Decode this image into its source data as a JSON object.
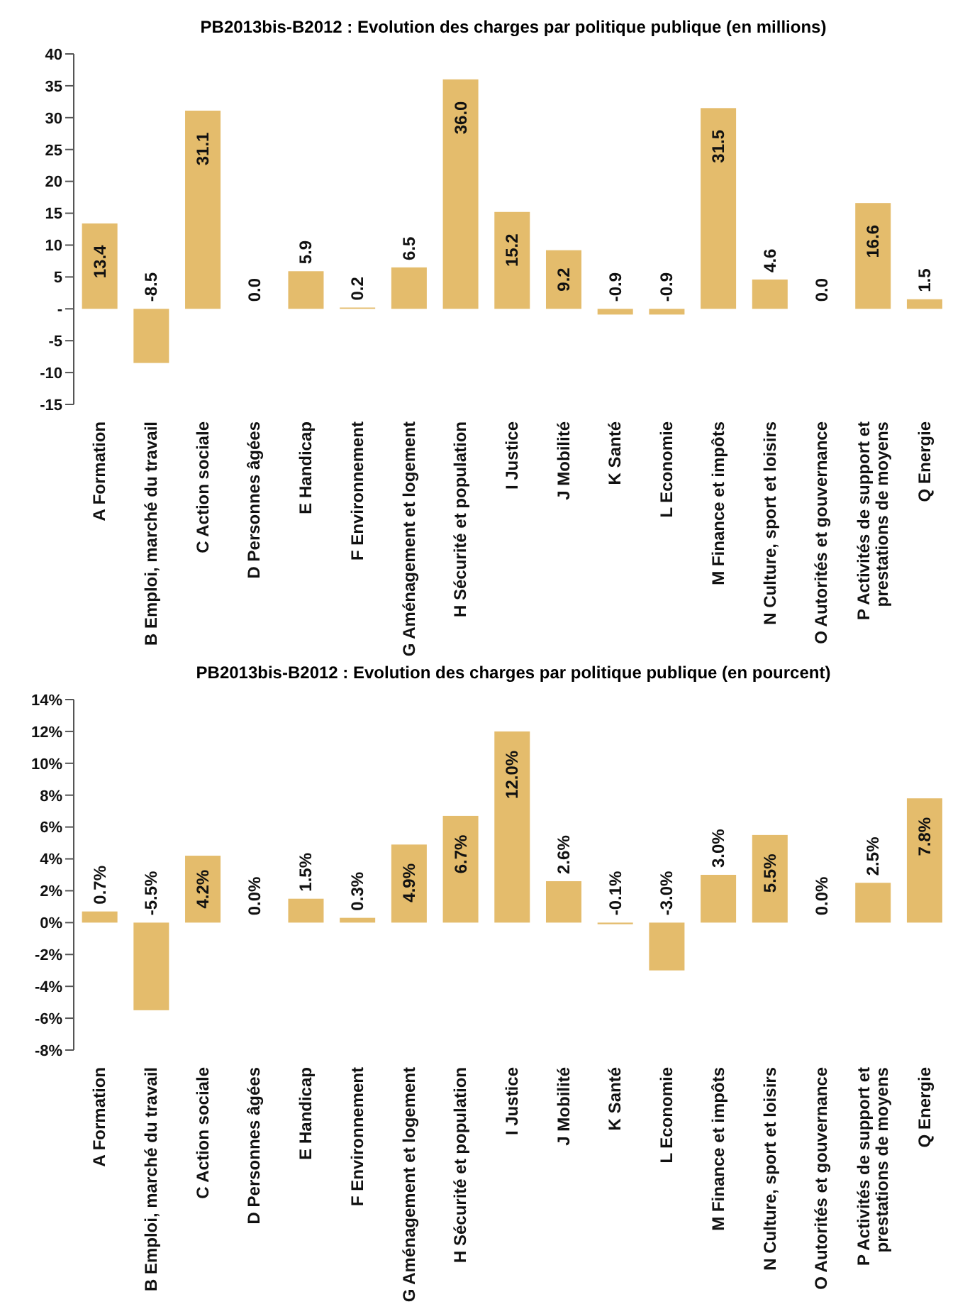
{
  "chart_data": [
    {
      "type": "bar",
      "title": "PB2013bis-B2012 : Evolution des charges par politique publique (en millions)",
      "categories": [
        "A Formation",
        "B Emploi, marché du travail",
        "C Action sociale",
        "D Personnes âgées",
        "E Handicap",
        "F Environnement",
        "G Aménagement et logement",
        "H Sécurité et population",
        "I Justice",
        "J Mobilité",
        "K Santé",
        "L Economie",
        "M Finance et impôts",
        "N Culture, sport et loisirs",
        "O Autorités et gouvernance",
        "P Activités de support et prestations de moyens",
        "Q Energie"
      ],
      "values": [
        13.4,
        -8.5,
        31.1,
        0.0,
        5.9,
        0.2,
        6.5,
        36.0,
        15.2,
        9.2,
        -0.9,
        -0.9,
        31.5,
        4.6,
        0.0,
        16.6,
        1.5
      ],
      "value_labels": [
        "13.4",
        "-8.5",
        "31.1",
        "0.0",
        "5.9",
        "0.2",
        "6.5",
        "36.0",
        "15.2",
        "9.2",
        "-0.9",
        "-0.9",
        "31.5",
        "4.6",
        "0.0",
        "16.6",
        "1.5"
      ],
      "color": "#e4bc6c",
      "ylim": [
        -15,
        40
      ],
      "yticks": [
        -15,
        -10,
        -5,
        {
          "value": 0,
          "label": "-"
        },
        5,
        10,
        15,
        20,
        25,
        30,
        35,
        40
      ],
      "grid": false,
      "legend": false
    },
    {
      "type": "bar",
      "title": "PB2013bis-B2012 : Evolution des charges par politique publique (en pourcent)",
      "categories": [
        "A Formation",
        "B Emploi, marché du travail",
        "C Action sociale",
        "D Personnes âgées",
        "E Handicap",
        "F Environnement",
        "G Aménagement et logement",
        "H Sécurité et population",
        "I Justice",
        "J Mobilité",
        "K Santé",
        "L Economie",
        "M Finance et impôts",
        "N Culture, sport et loisirs",
        "O Autorités et gouvernance",
        "P Activités de support et prestations de moyens",
        "Q Energie"
      ],
      "values": [
        0.7,
        -5.5,
        4.2,
        0.0,
        1.5,
        0.3,
        4.9,
        6.7,
        12.0,
        2.6,
        -0.1,
        -3.0,
        3.0,
        5.5,
        0.0,
        2.5,
        7.8
      ],
      "value_labels": [
        "0.7%",
        "-5.5%",
        "4.2%",
        "0.0%",
        "1.5%",
        "0.3%",
        "4.9%",
        "6.7%",
        "12.0%",
        "2.6%",
        "-0.1%",
        "-3.0%",
        "3.0%",
        "5.5%",
        "0.0%",
        "2.5%",
        "7.8%"
      ],
      "color": "#e4bc6c",
      "ylim": [
        -8,
        14
      ],
      "yticks": [
        {
          "value": -8,
          "label": "-8%"
        },
        {
          "value": -6,
          "label": "-6%"
        },
        {
          "value": -4,
          "label": "-4%"
        },
        {
          "value": -2,
          "label": "-2%"
        },
        {
          "value": 0,
          "label": "0%"
        },
        {
          "value": 2,
          "label": "2%"
        },
        {
          "value": 4,
          "label": "4%"
        },
        {
          "value": 6,
          "label": "6%"
        },
        {
          "value": 8,
          "label": "8%"
        },
        {
          "value": 10,
          "label": "10%"
        },
        {
          "value": 12,
          "label": "12%"
        },
        {
          "value": 14,
          "label": "14%"
        }
      ],
      "grid": false,
      "legend": false
    }
  ]
}
